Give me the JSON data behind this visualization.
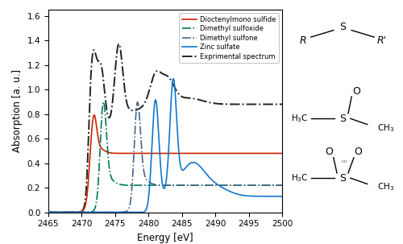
{
  "title": "",
  "xlabel": "Energy [eV]",
  "ylabel": "Absorption [a. u.]",
  "xlim": [
    2465,
    2500
  ],
  "ylim": [
    0,
    1.65
  ],
  "yticks": [
    0.0,
    0.2,
    0.4,
    0.6,
    0.8,
    1.0,
    1.2,
    1.4,
    1.6
  ],
  "xticks": [
    2465,
    2470,
    2475,
    2480,
    2485,
    2490,
    2495,
    2500
  ],
  "legend_entries": [
    "Dioctenylmono sulfide",
    "Dimethyl sulfoxide",
    "Dimethyl sulfone",
    "Zinc sulfate",
    "Exprimental spectrum"
  ],
  "colors": {
    "sulfide": "#cc2200",
    "sulfoxide": "#007755",
    "sulfone": "#446688",
    "zinc_sulfate": "#1177cc",
    "experimental": "#222222"
  },
  "figsize": [
    5.0,
    3.03
  ],
  "dpi": 100
}
